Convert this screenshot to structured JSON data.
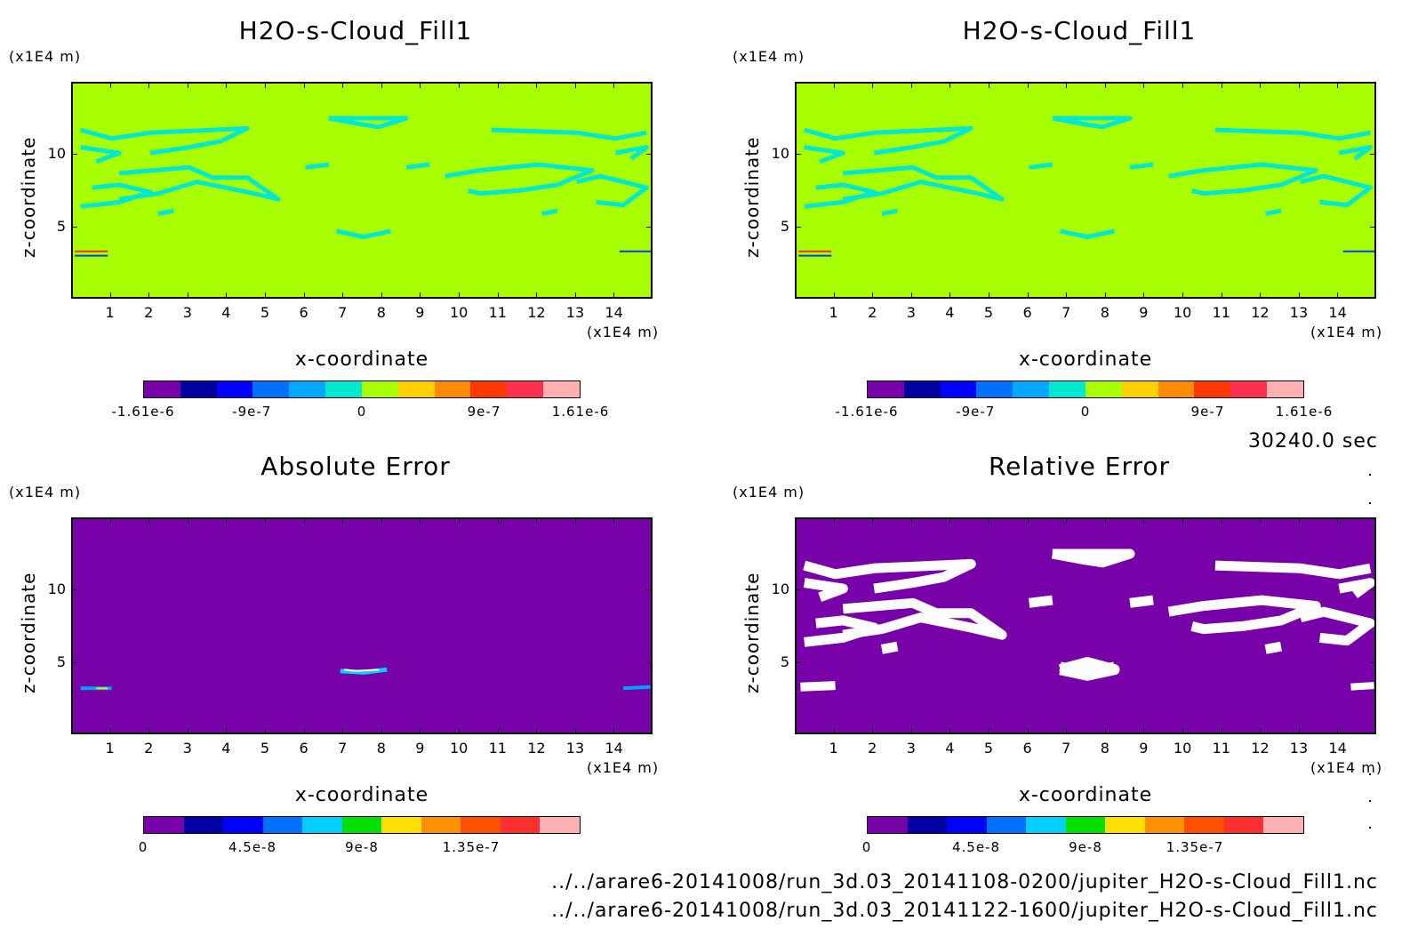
{
  "time_label": "30240.0 sec",
  "footer_lines": [
    "../../arare6-20141008/run_3d.03_20141108-0200/jupiter_H2O-s-Cloud_Fill1.nc",
    "../../arare6-20141008/run_3d.03_20141122-1600/jupiter_H2O-s-Cloud_Fill1.nc"
  ],
  "colors": {
    "field_background": "#a8ff00",
    "field_feature": "#00e8d0",
    "error_background": "#7800a8",
    "relative_error_feature": "#ffffff"
  },
  "chart_data": [
    {
      "type": "heatmap",
      "title": "H2O-s-Cloud_Fill1",
      "xlabel": "x-coordinate",
      "ylabel": "z-coordinate",
      "x_unit": "(x1E4 m)",
      "y_unit": "(x1E4 m)",
      "xlim": [
        0,
        15
      ],
      "ylim": [
        0,
        15
      ],
      "x_ticks": [
        "1",
        "2",
        "3",
        "4",
        "5",
        "6",
        "7",
        "8",
        "9",
        "10",
        "11",
        "12",
        "13",
        "14"
      ],
      "y_ticks": [
        "5",
        "10"
      ],
      "colorbar": {
        "colors": [
          "#7800a8",
          "#0000a0",
          "#0000ff",
          "#0070ff",
          "#00a8ff",
          "#00e8d0",
          "#a8ff00",
          "#ffd000",
          "#ff8c00",
          "#ff3800",
          "#ff3050",
          "#ffb0b0"
        ],
        "labels": [
          "-1.61e-6",
          "-9e-7",
          "0",
          "9e-7",
          "1.61e-6"
        ]
      }
    },
    {
      "type": "heatmap",
      "title": "H2O-s-Cloud_Fill1",
      "xlabel": "x-coordinate",
      "ylabel": "z-coordinate",
      "x_unit": "(x1E4 m)",
      "y_unit": "(x1E4 m)",
      "xlim": [
        0,
        15
      ],
      "ylim": [
        0,
        15
      ],
      "x_ticks": [
        "1",
        "2",
        "3",
        "4",
        "5",
        "6",
        "7",
        "8",
        "9",
        "10",
        "11",
        "12",
        "13",
        "14"
      ],
      "y_ticks": [
        "5",
        "10"
      ],
      "colorbar": {
        "colors": [
          "#7800a8",
          "#0000a0",
          "#0000ff",
          "#0070ff",
          "#00a8ff",
          "#00e8d0",
          "#a8ff00",
          "#ffd000",
          "#ff8c00",
          "#ff3800",
          "#ff3050",
          "#ffb0b0"
        ],
        "labels": [
          "-1.61e-6",
          "-9e-7",
          "0",
          "9e-7",
          "1.61e-6"
        ]
      }
    },
    {
      "type": "heatmap",
      "title": "Absolute Error",
      "xlabel": "x-coordinate",
      "ylabel": "z-coordinate",
      "x_unit": "(x1E4 m)",
      "y_unit": "(x1E4 m)",
      "xlim": [
        0,
        15
      ],
      "ylim": [
        0,
        15
      ],
      "x_ticks": [
        "1",
        "2",
        "3",
        "4",
        "5",
        "6",
        "7",
        "8",
        "9",
        "10",
        "11",
        "12",
        "13",
        "14"
      ],
      "y_ticks": [
        "5",
        "10"
      ],
      "colorbar": {
        "colors": [
          "#7800a8",
          "#0000a0",
          "#0000ff",
          "#0070ff",
          "#00d0ff",
          "#00e000",
          "#ffe000",
          "#ff9000",
          "#ff5000",
          "#ff3030",
          "#ffb0b0"
        ],
        "labels": [
          "0",
          "4.5e-8",
          "9e-8",
          "1.35e-7"
        ]
      }
    },
    {
      "type": "heatmap",
      "title": "Relative Error",
      "xlabel": "x-coordinate",
      "ylabel": "z-coordinate",
      "x_unit": "(x1E4 m)",
      "y_unit": "(x1E4 m)",
      "xlim": [
        0,
        15
      ],
      "ylim": [
        0,
        15
      ],
      "x_ticks": [
        "1",
        "2",
        "3",
        "4",
        "5",
        "6",
        "7",
        "8",
        "9",
        "10",
        "11",
        "12",
        "13",
        "14"
      ],
      "y_ticks": [
        "5",
        "10"
      ],
      "colorbar": {
        "colors": [
          "#7800a8",
          "#0000a0",
          "#0000ff",
          "#0070ff",
          "#00d0ff",
          "#00e000",
          "#ffe000",
          "#ff9000",
          "#ff5000",
          "#ff3030",
          "#ffb0b0"
        ],
        "labels": [
          "0",
          "4.5e-8",
          "9e-8",
          "1.35e-7"
        ]
      }
    }
  ]
}
